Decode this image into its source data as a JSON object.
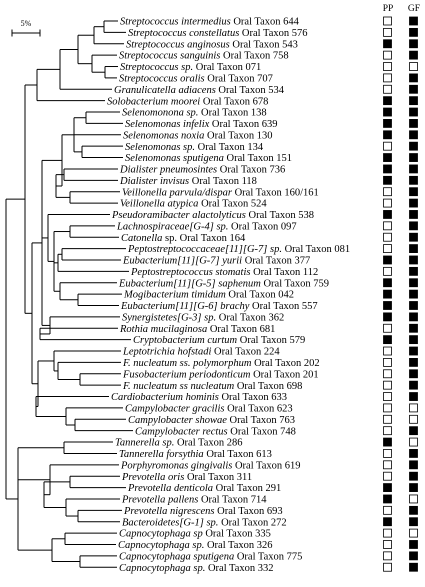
{
  "scale_label": "5%",
  "column_headers": [
    "PP",
    "GF"
  ],
  "taxa": [
    {
      "genus": "Streptococcus intermedius",
      "rest": " Oral Taxon 644",
      "pp": false,
      "gf": true
    },
    {
      "genus": "Streptococcus constellatus",
      "rest": " Oral Taxon 576",
      "pp": false,
      "gf": true
    },
    {
      "genus": "Streptococcus anginosus",
      "rest": " Oral Taxon 543",
      "pp": true,
      "gf": true
    },
    {
      "genus": "Streptococcus sanguinis",
      "rest": " Oral Taxon 758",
      "pp": false,
      "gf": true
    },
    {
      "genus": "Streptococcus sp.",
      "rest": " Oral Taxon 071",
      "pp": false,
      "gf": false
    },
    {
      "genus": "Streptococcus oralis",
      "rest": " Oral Taxon 707",
      "pp": false,
      "gf": true
    },
    {
      "genus": "Granulicatella adiacens",
      "rest": " Oral Taxon 534",
      "pp": false,
      "gf": true
    },
    {
      "genus": "Solobacterium moorei",
      "rest": " Oral Taxon 678",
      "pp": true,
      "gf": true
    },
    {
      "genus": "Selenomonona sp.",
      "rest": " Oral Taxon 138",
      "pp": true,
      "gf": true
    },
    {
      "genus": "Selenomonas infelix",
      "rest": " Oral Taxon 639",
      "pp": true,
      "gf": true
    },
    {
      "genus": "Selenomonas noxia",
      "rest": " Oral Taxon 130",
      "pp": true,
      "gf": true
    },
    {
      "genus": "Selenomonas sp.",
      "rest": " Oral Taxon 134",
      "pp": false,
      "gf": true
    },
    {
      "genus": "Selenomonas sputigena",
      "rest": " Oral Taxon 151",
      "pp": true,
      "gf": true
    },
    {
      "genus": "Dialister pneumosintes",
      "rest": " Oral Taxon 736",
      "pp": true,
      "gf": true
    },
    {
      "genus": "Dialister invisus",
      "rest": " Oral Taxon 118",
      "pp": true,
      "gf": true
    },
    {
      "genus": "Veillonella parvula/dispar",
      "rest": " Oral Taxon 160/161",
      "pp": false,
      "gf": true
    },
    {
      "genus": "Veillonella atypica",
      "rest": " Oral Taxon 524",
      "pp": false,
      "gf": true
    },
    {
      "genus": "Pseudoramibacter alactolyticus",
      "rest": " Oral Taxon 538",
      "pp": true,
      "gf": true
    },
    {
      "genus": "Lachnospiraceae[G-4] sp.",
      "rest": " Oral Taxon 097",
      "pp": false,
      "gf": true
    },
    {
      "genus": "Catonella",
      "rest": " sp. Oral Taxon 164",
      "pp": false,
      "gf": true
    },
    {
      "genus": "Peptostreptococcaceae[11][G-7] sp.",
      "rest": " Oral Taxon 081",
      "pp": false,
      "gf": true
    },
    {
      "genus": "Eubacterium[11][G-7] yurii",
      "rest": " Oral Taxon 377",
      "pp": true,
      "gf": true
    },
    {
      "genus": "Peptostreptococcus stomatis",
      "rest": " Oral Taxon 112",
      "pp": false,
      "gf": true
    },
    {
      "genus": "Eubacterium[11][G-5] saphenum",
      "rest": " Oral Taxon 759",
      "pp": true,
      "gf": true
    },
    {
      "genus": "Mogibacterium timidum",
      "rest": " Oral Taxon 042",
      "pp": true,
      "gf": true
    },
    {
      "genus": "Eubacterium[11][G-6] brachy",
      "rest": " Oral Taxon 557",
      "pp": true,
      "gf": true
    },
    {
      "genus": "Synergistetes[G-3] sp.",
      "rest": " Oral Taxon 362",
      "pp": true,
      "gf": true
    },
    {
      "genus": "Rothia mucilaginosa",
      "rest": " Oral Taxon 681",
      "pp": false,
      "gf": true
    },
    {
      "genus": "Cryptobacterium curtum",
      "rest": " Oral Taxon 579",
      "pp": true,
      "gf": true
    },
    {
      "genus": "Leptotrichia hofstadi",
      "rest": " Oral Taxon 224",
      "pp": false,
      "gf": true
    },
    {
      "genus": "F. nucleatum ss. polymorphum",
      "rest": " Oral Taxon 202",
      "pp": false,
      "gf": true
    },
    {
      "genus": "Fusobacterium periodonticum",
      "rest": " Oral Taxon 201",
      "pp": false,
      "gf": true
    },
    {
      "genus": "F. nucleatum ss nucleatum",
      "rest": " Oral Taxon 698",
      "pp": false,
      "gf": true
    },
    {
      "genus": "Cardiobacterium hominis",
      "rest": " Oral Taxon 633",
      "pp": false,
      "gf": true
    },
    {
      "genus": "Campylobacter gracilis",
      "rest": " Oral Taxon 623",
      "pp": false,
      "gf": false
    },
    {
      "genus": "Campylobacter showae",
      "rest": " Oral Taxon 763",
      "pp": false,
      "gf": false
    },
    {
      "genus": "Campylobacter rectus",
      "rest": " Oral Taxon 748",
      "pp": false,
      "gf": true
    },
    {
      "genus": "Tannerella sp.",
      "rest": " Oral Taxon 286",
      "pp": true,
      "gf": false
    },
    {
      "genus": "Tannerella forsythia",
      "rest": " Oral Taxon 613",
      "pp": false,
      "gf": true
    },
    {
      "genus": "Porphyromonas gingivalis",
      "rest": " Oral Taxon 619",
      "pp": false,
      "gf": true
    },
    {
      "genus": "Prevotella oris",
      "rest": " Oral Taxon 311",
      "pp": false,
      "gf": true
    },
    {
      "genus": "Prevotella denticola",
      "rest": " Oral Taxon 291",
      "pp": true,
      "gf": true
    },
    {
      "genus": "Prevotella pallens",
      "rest": " Oral Taxon 714",
      "pp": true,
      "gf": false
    },
    {
      "genus": "Prevotella nigrescens",
      "rest": " Oral Taxon 693",
      "pp": false,
      "gf": true
    },
    {
      "genus": "Bacteroidetes[G-1] sp.",
      "rest": " Oral Taxon 272",
      "pp": true,
      "gf": true
    },
    {
      "genus": "Capnocytophaga sp",
      "rest": " Oral Taxon 335",
      "pp": false,
      "gf": false
    },
    {
      "genus": "Capnocytophaga sp.",
      "rest": " Oral Taxon 326",
      "pp": false,
      "gf": true
    },
    {
      "genus": "Capnocytophaga sputigena",
      "rest": " Oral Taxon 775",
      "pp": false,
      "gf": true
    },
    {
      "genus": "Capnocytophaga sp.",
      "rest": " Oral Taxon 332",
      "pp": false,
      "gf": true
    }
  ]
}
